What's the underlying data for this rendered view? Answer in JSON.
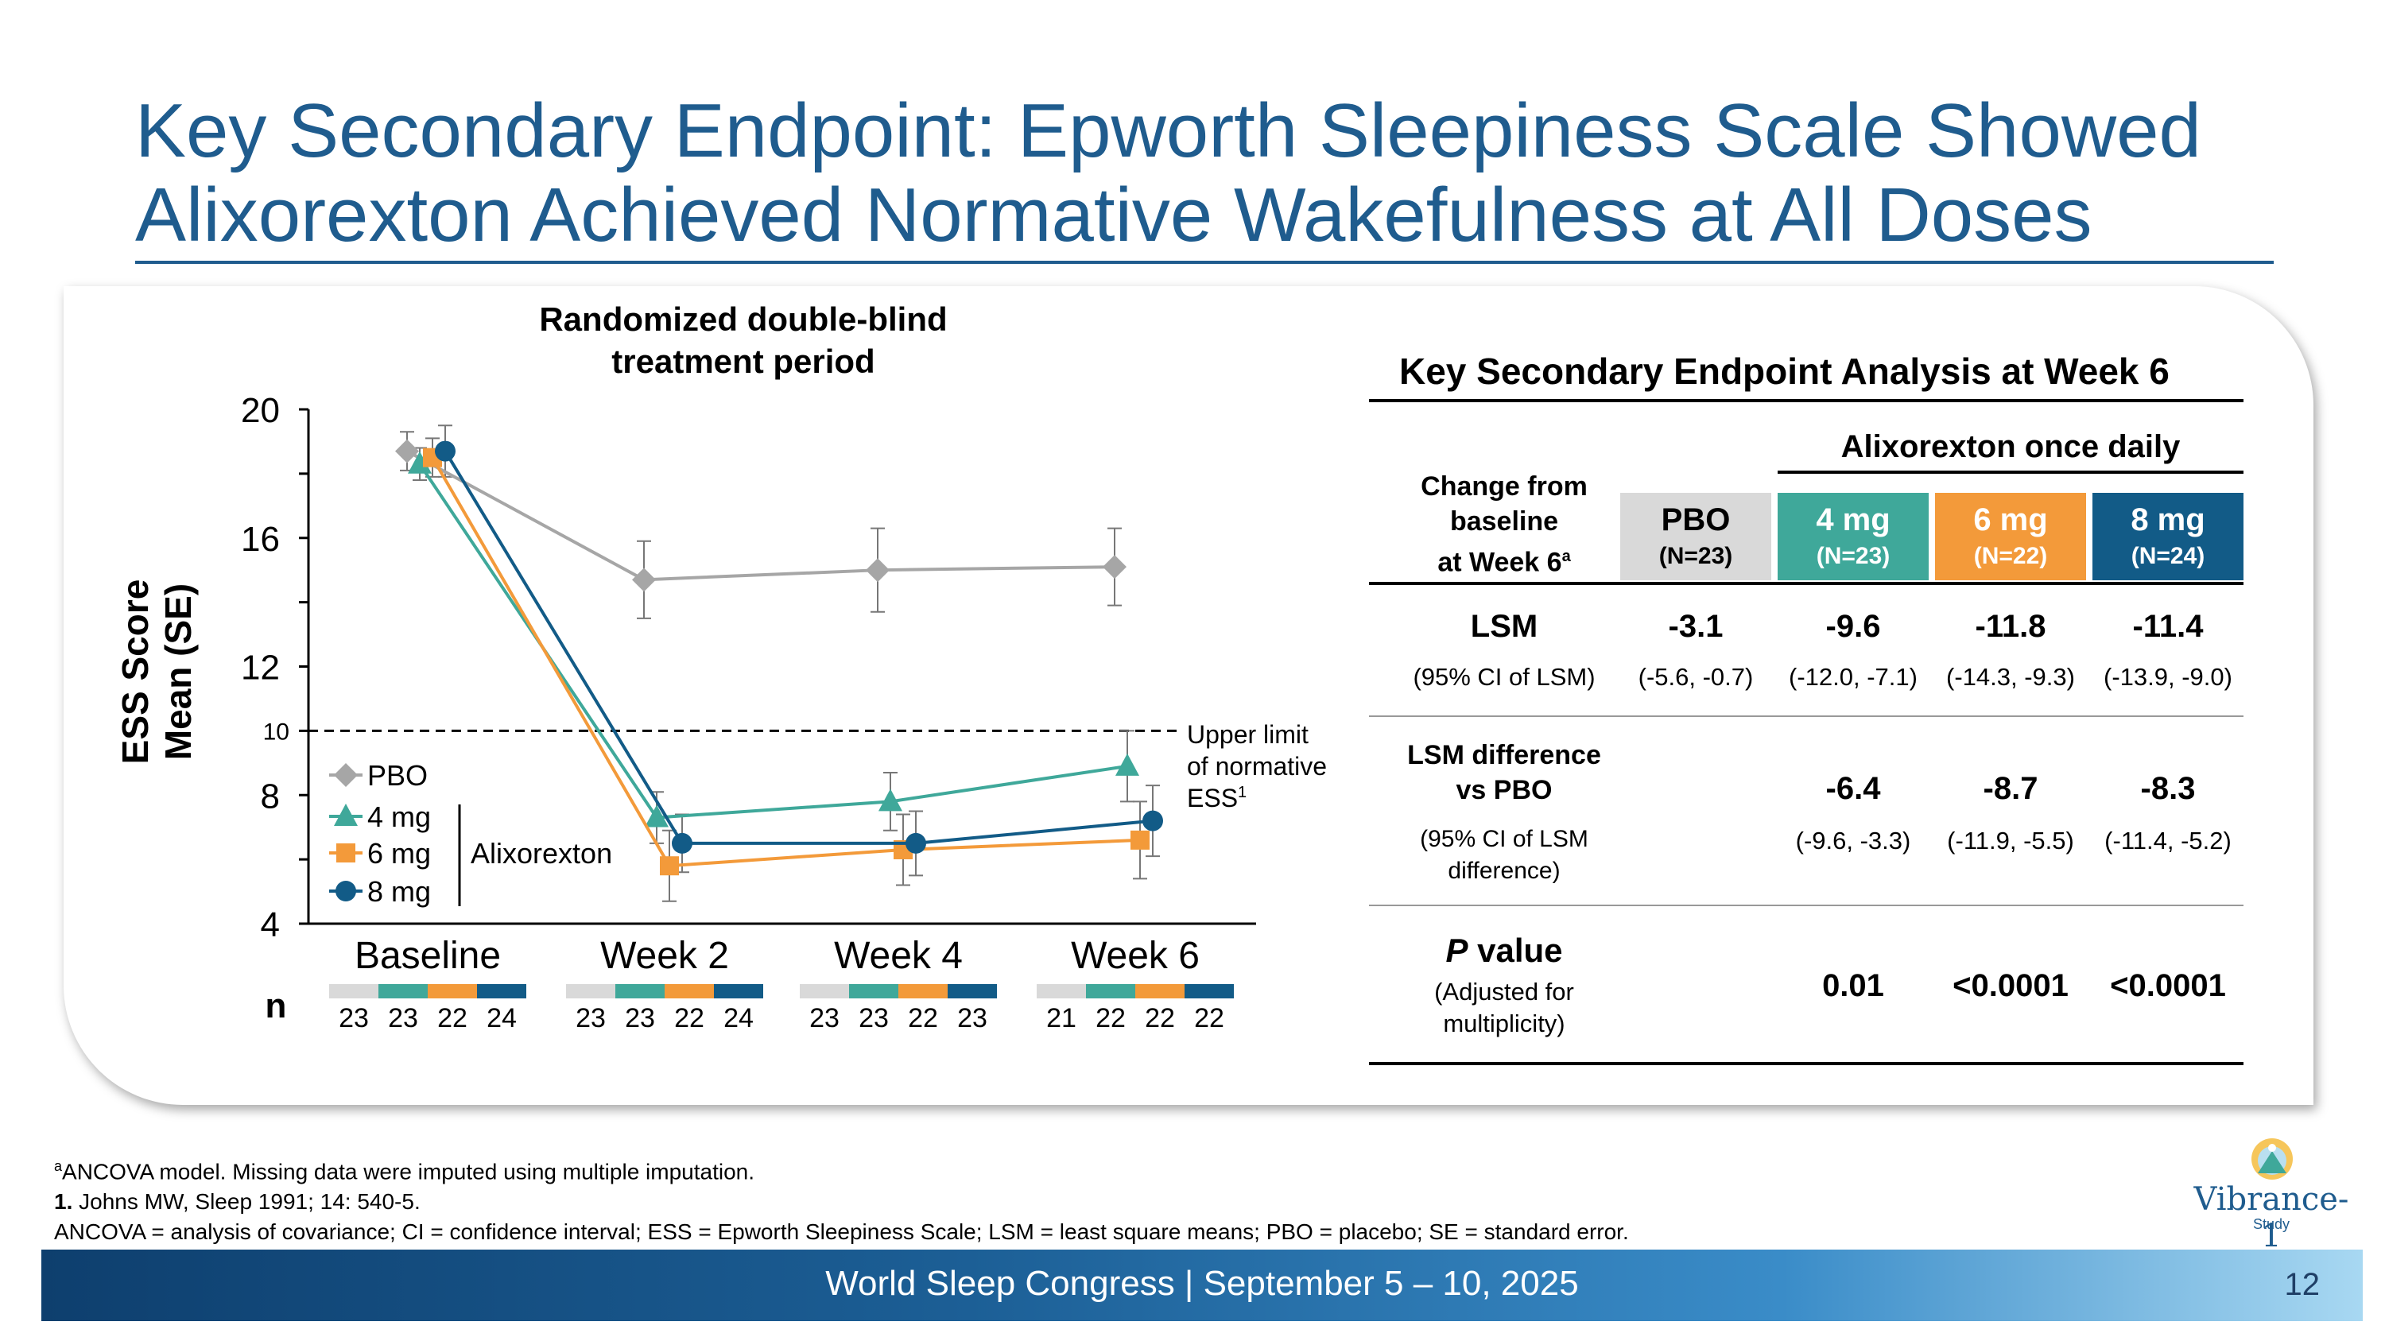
{
  "title_line1": "Key Secondary Endpoint: Epworth Sleepiness Scale Showed",
  "title_line2": "Alixorexton Achieved Normative Wakefulness at All Doses",
  "chart_data": {
    "type": "line",
    "header_line1": "Randomized double-blind",
    "header_line2": "treatment period",
    "ylabel_line1": "ESS Score",
    "ylabel_line2": "Mean (SE)",
    "ylim": [
      4,
      20
    ],
    "yticks": [
      "4",
      "8",
      "12",
      "16",
      "20"
    ],
    "reference_line": {
      "y": 10,
      "label": "10",
      "text_line1": "Upper limit",
      "text_line2": "of normative",
      "text_line3": "ESS",
      "sup": "1"
    },
    "categories": [
      "Baseline",
      "Week 2",
      "Week 4",
      "Week 6"
    ],
    "series": [
      {
        "name": "PBO",
        "color": "#A6A6A6",
        "marker": "diamond",
        "values": [
          18.7,
          14.7,
          15.0,
          15.1
        ],
        "se": [
          0.6,
          1.2,
          1.3,
          1.2
        ],
        "n": [
          "23",
          "23",
          "23",
          "21"
        ]
      },
      {
        "name": "4 mg",
        "color": "#3FA89A",
        "marker": "triangle",
        "values": [
          18.3,
          7.3,
          7.8,
          8.9
        ],
        "se": [
          0.5,
          0.8,
          0.9,
          1.1
        ],
        "n": [
          "23",
          "23",
          "23",
          "22"
        ]
      },
      {
        "name": "6 mg",
        "color": "#F39A3A",
        "marker": "square",
        "values": [
          18.5,
          5.8,
          6.3,
          6.6
        ],
        "se": [
          0.6,
          1.1,
          1.1,
          1.2
        ],
        "n": [
          "22",
          "22",
          "22",
          "22"
        ]
      },
      {
        "name": "8 mg",
        "color": "#125B87",
        "marker": "circle",
        "values": [
          18.7,
          6.5,
          6.5,
          7.2
        ],
        "se": [
          0.8,
          0.9,
          1.0,
          1.1
        ],
        "n": [
          "24",
          "24",
          "23",
          "22"
        ]
      }
    ],
    "legend_group_label": "Alixorexton",
    "n_label": "n"
  },
  "table": {
    "title": "Key Secondary Endpoint Analysis at Week 6",
    "group_header": "Alixorexton once daily",
    "row_header_line1": "Change from",
    "row_header_line2": "baseline",
    "row_header_line3": "at Week 6",
    "row_header_sup": "a",
    "columns": [
      {
        "label": "PBO",
        "n": "(N=23)",
        "bg": "#D9D9D9",
        "fg": "#000000"
      },
      {
        "label": "4 mg",
        "n": "(N=23)",
        "bg": "#3FA89A",
        "fg": "#ffffff"
      },
      {
        "label": "6 mg",
        "n": "(N=22)",
        "bg": "#F39A3A",
        "fg": "#ffffff"
      },
      {
        "label": "8 mg",
        "n": "(N=24)",
        "bg": "#125B87",
        "fg": "#ffffff"
      }
    ],
    "lsm_label": "LSM",
    "lsm_ci_label": "(95% CI of LSM)",
    "lsm": [
      "-3.1",
      "-9.6",
      "-11.8",
      "-11.4"
    ],
    "lsm_ci": [
      "(-5.6, -0.7)",
      "(-12.0, -7.1)",
      "(-14.3, -9.3)",
      "(-13.9, -9.0)"
    ],
    "diff_label_line1": "LSM difference",
    "diff_label_line2": "vs PBO",
    "diff_ci_label_line1": "(95% CI of LSM",
    "diff_ci_label_line2": "difference)",
    "diff": [
      "-6.4",
      "-8.7",
      "-8.3"
    ],
    "diff_ci": [
      "(-9.6, -3.3)",
      "(-11.9, -5.5)",
      "(-11.4, -5.2)"
    ],
    "p_label_italic": "P",
    "p_label_rest": " value",
    "p_sub_line1": "(Adjusted for",
    "p_sub_line2": "multiplicity)",
    "p": [
      "0.01",
      "<0.0001",
      "<0.0001"
    ]
  },
  "footnotes": {
    "line1_sup": "a",
    "line1": "ANCOVA model. Missing data were imputed using multiple imputation.",
    "line2_num": "1.",
    "line2": " Johns MW, Sleep 1991; 14: 540-5.",
    "line3": "ANCOVA = analysis of covariance; CI = confidence interval; ESS = Epworth Sleepiness Scale; LSM = least square means; PBO = placebo; SE = standard error."
  },
  "footer": {
    "text": "World Sleep Congress | September 5 – 10, 2025",
    "page": "12"
  },
  "logo": {
    "name": "Vibrance-1",
    "sub": "Study"
  }
}
